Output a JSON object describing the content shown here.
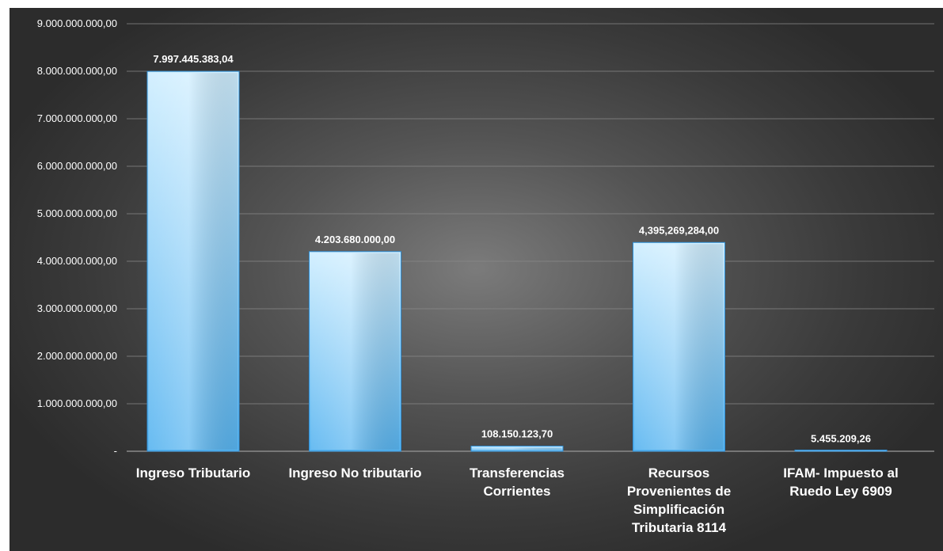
{
  "chart_data": {
    "type": "bar",
    "categories": [
      "Ingreso Tributario",
      "Ingreso No tributario",
      "Transferencias Corrientes",
      "Recursos Provenientes de Simplificación Tributaria 8114",
      "IFAM- Impuesto al Ruedo Ley 6909"
    ],
    "category_label_lines": [
      [
        "Ingreso Tributario"
      ],
      [
        "Ingreso No tributario"
      ],
      [
        "Transferencias",
        "Corrientes"
      ],
      [
        "Recursos",
        "Provenientes de",
        "Simplificación",
        "Tributaria 8114"
      ],
      [
        "IFAM- Impuesto al",
        "Ruedo Ley 6909"
      ]
    ],
    "values": [
      7997445383.04,
      4203680000.0,
      108150123.7,
      4395269284.0,
      5455209.26
    ],
    "data_labels": [
      "7.997.445.383,04",
      "4.203.680.000,00",
      "108.150.123,70",
      "4,395,269,284,00",
      "5.455.209,26"
    ],
    "ylim": [
      0,
      9000000000
    ],
    "y_ticks": [
      0,
      1000000000,
      2000000000,
      3000000000,
      4000000000,
      5000000000,
      6000000000,
      7000000000,
      8000000000,
      9000000000
    ],
    "y_tick_labels": [
      "-",
      "1.000.000.000,00",
      "2.000.000.000,00",
      "3.000.000.000,00",
      "4.000.000.000,00",
      "5.000.000.000,00",
      "6.000.000.000,00",
      "7.000.000.000,00",
      "8.000.000.000,00",
      "9.000.000.000,00"
    ],
    "grid": true,
    "legend": "none",
    "colors": {
      "bar_top": "#cfeeff",
      "bar_bottom": "#57b4f0",
      "bar_edge": "#2f8fd6",
      "gridline": "#8a8a8a",
      "text": "#ffffff"
    }
  }
}
